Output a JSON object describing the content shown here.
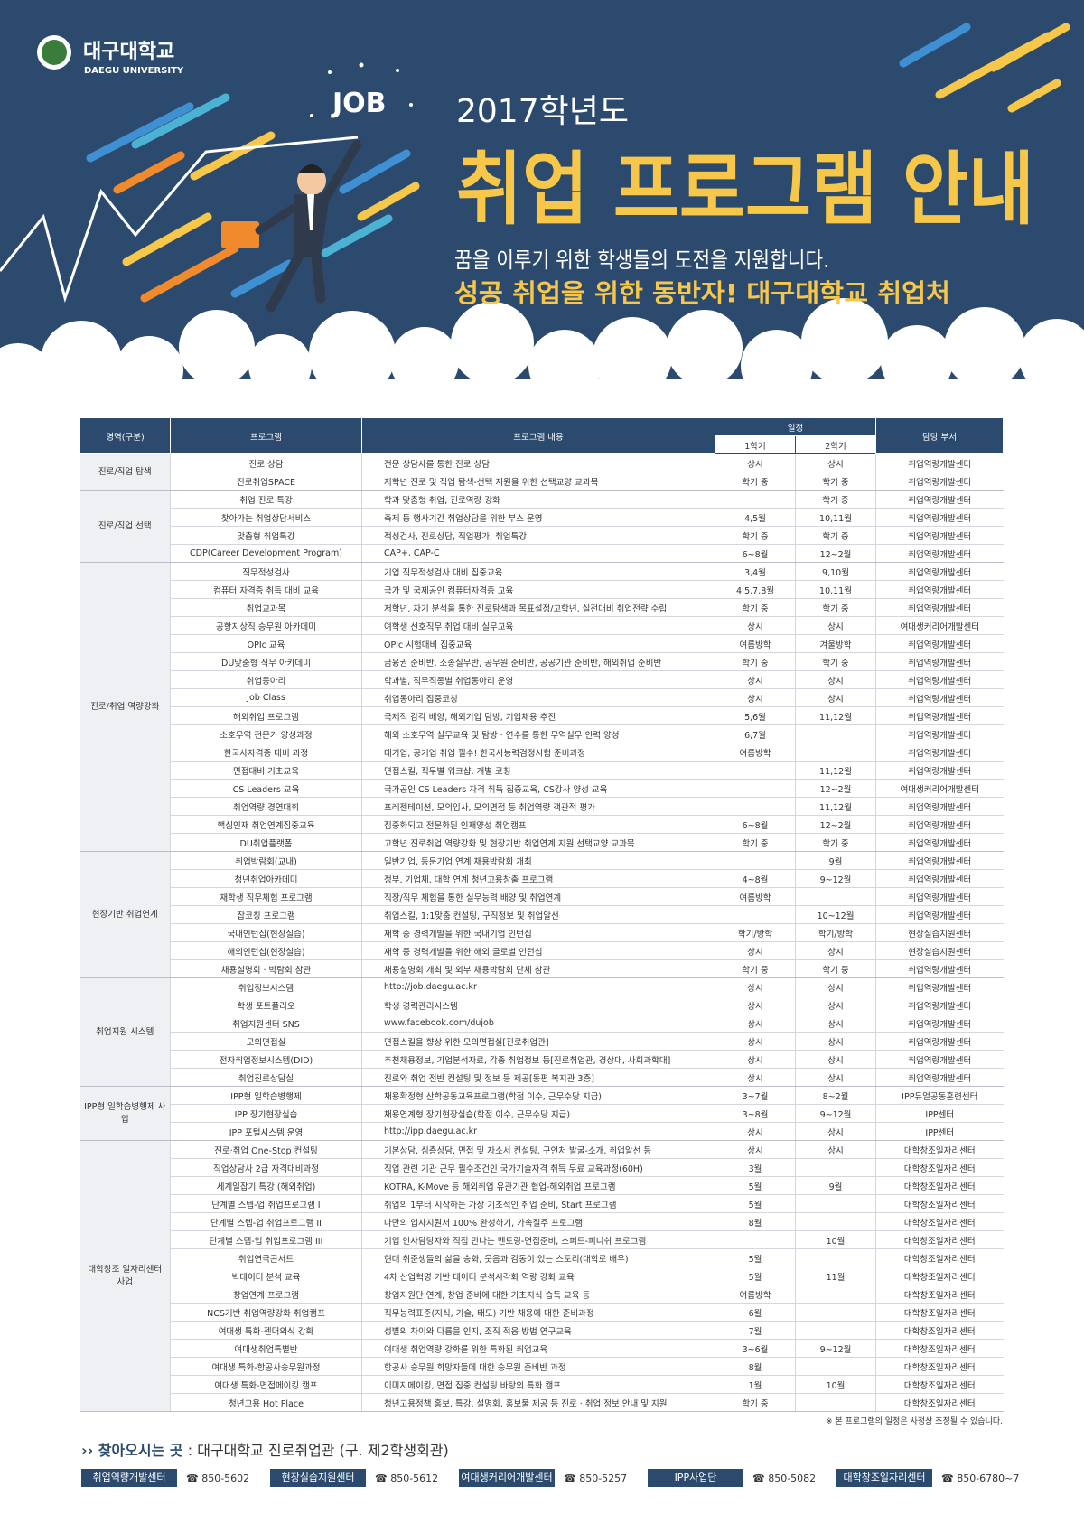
{
  "header": {
    "university": "대구대학교",
    "university_en": "DAEGU UNIVERSITY",
    "job_badge": "JOB",
    "year": "2017학년도",
    "title": "취업 프로그램 안내",
    "subtitle": "꿈을 이루기 위한 학생들의 도전을 지원합니다.",
    "slogan": "성공 취업을 위한 동반자! 대구대학교 취업처"
  },
  "table": {
    "headers": {
      "area": "영역(구분)",
      "program": "프로그램",
      "content": "프로그램 내용",
      "schedule": "일정",
      "sem1": "1학기",
      "sem2": "2학기",
      "dept": "담당 부서"
    },
    "groups": [
      {
        "area": "진로/직업 탐색",
        "rows": [
          [
            "진로 상담",
            "전문 상담사를 통한 진로 상담",
            "상시",
            "상시",
            "취업역량개발센터"
          ],
          [
            "진로취업SPACE",
            "저학년 진로 및 직업 탐색-선택 지원을 위한 선택교양 교과목",
            "학기 중",
            "학기 중",
            "취업역량개발센터"
          ]
        ]
      },
      {
        "area": "진로/직업 선택",
        "rows": [
          [
            "취업·진로 특강",
            "학과 맞춤형 취업, 진로역량 강화",
            null,
            "학기 중",
            "취업역량개발센터"
          ],
          [
            "찾아가는 취업상담서비스",
            "축제 등 행사기간 취업상담을 위한 부스 운영",
            "4,5월",
            "10,11월",
            "취업역량개발센터"
          ],
          [
            "맞춤형 취업특강",
            "적성검사, 진로상담, 직업평가, 취업특강",
            "학기 중",
            "학기 중",
            "취업역량개발센터"
          ],
          [
            "CDP(Career Development Program)",
            "CAP+, CAP-C",
            "6~8월",
            "12~2월",
            "취업역량개발센터"
          ]
        ]
      },
      {
        "area": "진로/취업 역량강화",
        "rows": [
          [
            "직무적성검사",
            "기업 직무적성검사 대비 집중교육",
            "3,4월",
            "9,10월",
            "취업역량개발센터"
          ],
          [
            "컴퓨터 자격증 취득 대비 교육",
            "국가 및 국제공인 컴퓨터자격증 교육",
            "4,5,7,8월",
            "10,11월",
            "취업역량개발센터"
          ],
          [
            "취업교과목",
            "저학년, 자기 분석을 통한 진로탐색과 목표설정/고학년, 실전대비 취업전략 수립",
            "학기 중",
            "학기 중",
            "취업역량개발센터"
          ],
          [
            "공항지상직 승무원 아카데미",
            "여학생 선호직무 취업 대비 실무교육",
            "상시",
            "상시",
            "여대생커리어개발센터"
          ],
          [
            "OPIc 교육",
            "OPIc 시험대비 집중교육",
            "여름방학",
            "겨울방학",
            "취업역량개발센터"
          ],
          [
            "DU맞춤형 직무 아카데미",
            "금융권 준비반, 소송실무반, 공무원 준비반, 공공기관 준비반, 해외취업 준비반",
            "학기 중",
            "학기 중",
            "취업역량개발센터"
          ],
          [
            "취업동아리",
            "학과별, 직무직종별 취업동아리 운영",
            "상시",
            "상시",
            "취업역량개발센터"
          ],
          [
            "Job Class",
            "취업동아리 집중코칭",
            "상시",
            "상시",
            "취업역량개발센터"
          ],
          [
            "해외취업 프로그램",
            "국제적 감각 배양, 해외기업 탐방, 기업채용 추진",
            "5,6월",
            "11,12월",
            "취업역량개발센터"
          ],
          [
            "소호무역 전문가 양성과정",
            "해외 소호무역 실무교육 및 탐방 · 연수를 통한 무역실무 인력 양성",
            "6,7월",
            null,
            "취업역량개발센터"
          ],
          [
            "한국사자격증 대비 과정",
            "대기업, 공기업 취업 필수! 한국사능력검정시험 준비과정",
            "여름방학",
            null,
            "취업역량개발센터"
          ],
          [
            "면접대비 기초교육",
            "면접스킬, 직무별 워크샵, 개별 코칭",
            null,
            "11,12월",
            "취업역량개발센터"
          ],
          [
            "CS Leaders 교육",
            "국가공인 CS Leaders 자격 취득 집중교육, CS강사 양성 교육",
            null,
            "12~2월",
            "여대생커리어개발센터"
          ],
          [
            "취업역량 경연대회",
            "프레젠테이션, 모의입사, 모의면접 등 취업역량 객관적 평가",
            null,
            "11,12월",
            "취업역량개발센터"
          ],
          [
            "핵심인재 취업연계집중교육",
            "집중화되고 전문화된 인재양성 취업캠프",
            "6~8월",
            "12~2월",
            "취업역량개발센터"
          ],
          [
            "DU취업플랫폼",
            "고학년 진로취업 역량강화 및 현장기반 취업연계 지원 선택교양 교과목",
            "학기 중",
            "학기 중",
            "취업역량개발센터"
          ]
        ]
      },
      {
        "area": "현장기반 취업연계",
        "rows": [
          [
            "취업박람회(교내)",
            "일반기업, 동문기업 연계 채용박람회 개최",
            null,
            "9월",
            "취업역량개발센터"
          ],
          [
            "청년취업아카데미",
            "정부, 기업체, 대학 연계 청년고용창출 프로그램",
            "4~8월",
            "9~12월",
            "취업역량개발센터"
          ],
          [
            "재학생 직무체험 프로그램",
            "직장/직무 체험을 통한 실무능력 배양 및 취업연계",
            "여름방학",
            null,
            "취업역량개발센터"
          ],
          [
            "잡코칭 프로그램",
            "취업스킬, 1:1맞춤 컨설팅, 구직정보 및 취업알선",
            null,
            "10~12월",
            "취업역량개발센터"
          ],
          [
            "국내인턴십(현장실습)",
            "재학 중 경력개발을 위한 국내기업 인턴십",
            "학기/방학",
            "학기/방학",
            "현장실습지원센터"
          ],
          [
            "해외인턴십(현장실습)",
            "재학 중 경력개발을 위한 해외 글로벌 인턴십",
            "상시",
            "상시",
            "현장실습지원센터"
          ],
          [
            "채용설명회 · 박람회 참관",
            "채용설명회 개최 및 외부 채용박람회 단체 참관",
            "학기 중",
            "학기 중",
            "취업역량개발센터"
          ]
        ]
      },
      {
        "area": "취업지원 시스템",
        "rows": [
          [
            "취업정보시스템",
            "http://job.daegu.ac.kr",
            "상시",
            "상시",
            "취업역량개발센터"
          ],
          [
            "학생 포트폴리오",
            "학생 경력관리시스템",
            "상시",
            "상시",
            "취업역량개발센터"
          ],
          [
            "취업지원센터 SNS",
            "www.facebook.com/dujob",
            "상시",
            "상시",
            "취업역량개발센터"
          ],
          [
            "모의면접실",
            "면접스킬을 향상 위한 모의면접실[진로취업관]",
            "상시",
            "상시",
            "취업역량개발센터"
          ],
          [
            "전자취업정보시스템(DID)",
            "추천채용정보, 기업분석자료, 각종 취업정보 등[진로취업관, 경상대, 사회과학대]",
            "상시",
            "상시",
            "취업역량개발센터"
          ],
          [
            "취업진로상담실",
            "진로와 취업 전반 컨설팅 및 정보 등 제공[동편 복지관 3층]",
            "상시",
            "상시",
            "취업역량개발센터"
          ]
        ]
      },
      {
        "area": "IPP형 일학습병행제 사업",
        "rows": [
          [
            "IPP형 일학습병행제",
            "채용확정형 산학공동교육프로그램(학점 이수, 근무수당 지급)",
            "3~7월",
            "8~2월",
            "IPP듀얼공동훈련센터"
          ],
          [
            "IPP 장기현장실습",
            "채용연계형 장기현장실습(학점 이수, 근무수당 지급)",
            "3~8월",
            "9~12월",
            "IPP센터"
          ],
          [
            "IPP 포털시스템 운영",
            "http://ipp.daegu.ac.kr",
            "상시",
            "상시",
            "IPP센터"
          ]
        ]
      },
      {
        "area": "대학창조 일자리센터 사업",
        "rows": [
          [
            "진로·취업 One-Stop 컨설팅",
            "기본상담, 심층상담, 면접 및 자소서 컨설팅, 구인처 발굴-소개, 취업알선 등",
            "상시",
            "상시",
            "대학창조일자리센터"
          ],
          [
            "직업상담사 2급 자격대비과정",
            "직업 관련 기관 근무 필수조건인 국가기술자격 취득 무료 교육과정(60H)",
            "3월",
            null,
            "대학창조일자리센터"
          ],
          [
            "세계일잡기 특강 (해외취업)",
            "KOTRA, K-Move 등 해외취업 유관기관 협업-해외취업 프로그램",
            "5월",
            "9월",
            "대학창조일자리센터"
          ],
          [
            "단계별 스텝-업 취업프로그램 I",
            "취업의 1부터 시작하는 가장 기초적인 취업 준비, Start 프로그램",
            "5월",
            null,
            "대학창조일자리센터"
          ],
          [
            "단계별 스텝-업 취업프로그램 II",
            "나만의 입사지원서 100% 완성하기, 가속질주 프로그램",
            "8월",
            null,
            "대학창조일자리센터"
          ],
          [
            "단계별 스텝-업 취업프로그램 III",
            "기업 인사담당자와 직접 만나는 멘토링-면접준비, 스퍼트-피니쉬 프로그램",
            null,
            "10월",
            "대학창조일자리센터"
          ],
          [
            "취업연극콘서트",
            "현대 취준생들의 삶을 승화, 웃음과 감동이 있는 스토리(대학로 배우)",
            "5월",
            null,
            "대학창조일자리센터"
          ],
          [
            "빅데이터 분석 교육",
            "4차 산업혁명 기반 데이터 분석시각화 역량 강화 교육",
            "5월",
            "11월",
            "대학창조일자리센터"
          ],
          [
            "창업연계 프로그램",
            "창업지원단 연계, 창업 준비에 대한 기초지식 습득 교육 등",
            "여름방학",
            null,
            "대학창조일자리센터"
          ],
          [
            "NCS기반 취업역량강화 취업캠프",
            "직무능력표준(지식, 기술, 태도) 기반 채용에 대한 준비과정",
            "6월",
            null,
            "대학창조일자리센터"
          ],
          [
            "여대생 특화-젠더의식 강화",
            "성별의 차이와 다름을 인지, 조직 적응 방법 연구교육",
            "7월",
            null,
            "대학창조일자리센터"
          ],
          [
            "여대생취업특별반",
            "여대생 취업역량 강화를 위한 특화된 취업교육",
            "3~6월",
            "9~12월",
            "대학창조일자리센터"
          ],
          [
            "여대생 특화-항공사승무원과정",
            "항공사 승무원 희망자들에 대한 승무원 준비반 과정",
            "8월",
            null,
            "대학창조일자리센터"
          ],
          [
            "여대생 특화-면접메이킹 캠프",
            "이미지메이킹, 면접 집중 컨설팅 바탕의 특화 캠프",
            "1월",
            "10월",
            "대학창조일자리센터"
          ],
          [
            "청년고용 Hot Place",
            "청년고용정책 홍보, 특강, 설명회, 홍보물 제공 등 진로 · 취업 정보 안내 및 지원",
            "학기 중",
            null,
            "대학창조일자리센터"
          ]
        ]
      }
    ]
  },
  "note": "※ 본 프로그램의 일정은 사정상 조정될 수 있습니다.",
  "footer": {
    "location_label": "찾아오시는 곳",
    "location": ": 대구대학교 진로취업관 (구. 제2학생회관)",
    "contacts": [
      {
        "dept": "취업역량개발센터",
        "phone": "☎ 850-5602"
      },
      {
        "dept": "현장실습지원센터",
        "phone": "☎ 850-5612"
      },
      {
        "dept": "여대생커리어개발센터",
        "phone": "☎ 850-5257"
      },
      {
        "dept": "IPP사업단",
        "phone": "☎ 850-5082"
      },
      {
        "dept": "대학창조일자리센터",
        "phone": "☎ 850-6780~7"
      }
    ]
  }
}
